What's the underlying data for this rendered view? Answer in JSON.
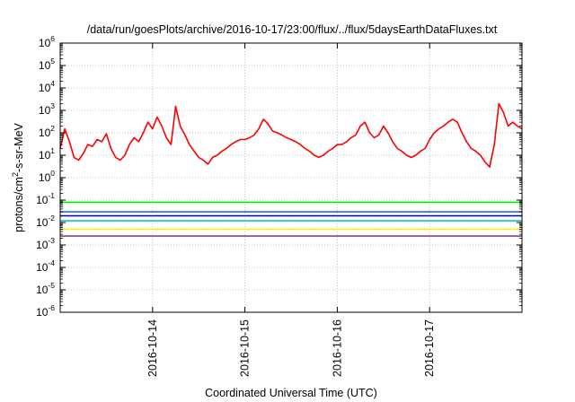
{
  "chart_data": {
    "type": "line",
    "title": "/data/run/goesPlots/archive/2016-10-17/23:00/flux/../flux/5daysEarthDataFluxes.txt",
    "xlabel": "Coordinated Universal Time (UTC)",
    "ylabel": {
      "pre": "protons/cm",
      "sup": "2",
      "post": "-s-sr-MeV"
    },
    "y_scale": "log",
    "ylim": [
      1e-06,
      1000000.0
    ],
    "y_ticks": [
      {
        "value": 1e-06,
        "base": "10",
        "exp": "-6"
      },
      {
        "value": 1e-05,
        "base": "10",
        "exp": "-5"
      },
      {
        "value": 0.0001,
        "base": "10",
        "exp": "-4"
      },
      {
        "value": 0.001,
        "base": "10",
        "exp": "-3"
      },
      {
        "value": 0.01,
        "base": "10",
        "exp": "-2"
      },
      {
        "value": 0.1,
        "base": "10",
        "exp": "-1"
      },
      {
        "value": 1,
        "base": "10",
        "exp": "0"
      },
      {
        "value": 10,
        "base": "10",
        "exp": "1"
      },
      {
        "value": 100,
        "base": "10",
        "exp": "2"
      },
      {
        "value": 1000,
        "base": "10",
        "exp": "3"
      },
      {
        "value": 10000,
        "base": "10",
        "exp": "4"
      },
      {
        "value": 100000,
        "base": "10",
        "exp": "5"
      },
      {
        "value": 1000000,
        "base": "10",
        "exp": "6"
      }
    ],
    "xlim": [
      "2016-10-13T00:00",
      "2016-10-18T00:00"
    ],
    "x_ticks": [
      {
        "value": "2016-10-14T00:00",
        "label": "2016-10-14"
      },
      {
        "value": "2016-10-15T00:00",
        "label": "2016-10-15"
      },
      {
        "value": "2016-10-16T00:00",
        "label": "2016-10-16"
      },
      {
        "value": "2016-10-17T00:00",
        "label": "2016-10-17"
      }
    ],
    "grid": true,
    "legend": "none",
    "series": [
      {
        "color": "#ff0000",
        "x": [
          "2016-10-13T00:00",
          "2016-10-13T01:12",
          "2016-10-13T02:24",
          "2016-10-13T03:36",
          "2016-10-13T04:48",
          "2016-10-13T06:00",
          "2016-10-13T07:12",
          "2016-10-13T08:24",
          "2016-10-13T09:36",
          "2016-10-13T10:48",
          "2016-10-13T12:00",
          "2016-10-13T13:12",
          "2016-10-13T14:24",
          "2016-10-13T15:36",
          "2016-10-13T16:48",
          "2016-10-13T18:00",
          "2016-10-13T19:12",
          "2016-10-13T20:24",
          "2016-10-13T21:36",
          "2016-10-13T22:48",
          "2016-10-14T00:00",
          "2016-10-14T01:12",
          "2016-10-14T02:24",
          "2016-10-14T03:36",
          "2016-10-14T04:48",
          "2016-10-14T06:00",
          "2016-10-14T07:12",
          "2016-10-14T08:24",
          "2016-10-14T09:36",
          "2016-10-14T10:48",
          "2016-10-14T12:00",
          "2016-10-14T13:12",
          "2016-10-14T14:24",
          "2016-10-14T15:36",
          "2016-10-14T16:48",
          "2016-10-14T18:00",
          "2016-10-14T19:12",
          "2016-10-14T20:24",
          "2016-10-14T21:36",
          "2016-10-14T22:48",
          "2016-10-15T00:00",
          "2016-10-15T01:12",
          "2016-10-15T02:24",
          "2016-10-15T03:36",
          "2016-10-15T04:48",
          "2016-10-15T06:00",
          "2016-10-15T07:12",
          "2016-10-15T08:24",
          "2016-10-15T09:36",
          "2016-10-15T10:48",
          "2016-10-15T12:00",
          "2016-10-15T13:12",
          "2016-10-15T14:24",
          "2016-10-15T15:36",
          "2016-10-15T16:48",
          "2016-10-15T18:00",
          "2016-10-15T19:12",
          "2016-10-15T20:24",
          "2016-10-15T21:36",
          "2016-10-15T22:48",
          "2016-10-16T00:00",
          "2016-10-16T01:12",
          "2016-10-16T02:24",
          "2016-10-16T03:36",
          "2016-10-16T04:48",
          "2016-10-16T06:00",
          "2016-10-16T07:12",
          "2016-10-16T08:24",
          "2016-10-16T09:36",
          "2016-10-16T10:48",
          "2016-10-16T12:00",
          "2016-10-16T13:12",
          "2016-10-16T14:24",
          "2016-10-16T15:36",
          "2016-10-16T16:48",
          "2016-10-16T18:00",
          "2016-10-16T19:12",
          "2016-10-16T20:24",
          "2016-10-16T21:36",
          "2016-10-16T22:48",
          "2016-10-17T00:00",
          "2016-10-17T01:12",
          "2016-10-17T02:24",
          "2016-10-17T03:36",
          "2016-10-17T04:48",
          "2016-10-17T06:00",
          "2016-10-17T07:12",
          "2016-10-17T08:24",
          "2016-10-17T09:36",
          "2016-10-17T10:48",
          "2016-10-17T12:00",
          "2016-10-17T13:12",
          "2016-10-17T14:24",
          "2016-10-17T15:36",
          "2016-10-17T16:48",
          "2016-10-17T18:00",
          "2016-10-17T19:12",
          "2016-10-17T20:24",
          "2016-10-17T21:36",
          "2016-10-17T22:48",
          "2016-10-18T00:00"
        ],
        "y": [
          20,
          150,
          40,
          8,
          6,
          12,
          30,
          25,
          50,
          40,
          90,
          20,
          8,
          6,
          10,
          30,
          60,
          40,
          100,
          300,
          150,
          500,
          200,
          60,
          30,
          1500,
          200,
          80,
          30,
          15,
          8,
          6,
          4,
          8,
          10,
          15,
          20,
          30,
          40,
          50,
          50,
          60,
          80,
          150,
          400,
          250,
          120,
          100,
          80,
          60,
          50,
          40,
          30,
          20,
          15,
          10,
          8,
          10,
          15,
          20,
          30,
          30,
          40,
          60,
          80,
          200,
          300,
          100,
          60,
          80,
          200,
          100,
          40,
          20,
          15,
          10,
          8,
          10,
          15,
          20,
          50,
          100,
          150,
          200,
          300,
          400,
          300,
          100,
          40,
          20,
          15,
          10,
          5,
          3,
          30,
          2000,
          800,
          200,
          300,
          200,
          150
        ]
      },
      {
        "color": "#00ee00",
        "x": [
          "2016-10-13T00:00",
          "2016-10-18T00:00"
        ],
        "y": [
          0.08,
          0.08
        ]
      },
      {
        "color": "#2266ff",
        "x": [
          "2016-10-13T00:00",
          "2016-10-18T00:00"
        ],
        "y": [
          0.03,
          0.03
        ]
      },
      {
        "color": "#0000cc",
        "x": [
          "2016-10-13T00:00",
          "2016-10-18T00:00"
        ],
        "y": [
          0.02,
          0.02
        ]
      },
      {
        "color": "#00bbbb",
        "x": [
          "2016-10-13T00:00",
          "2016-10-18T00:00"
        ],
        "y": [
          0.012,
          0.012
        ]
      },
      {
        "color": "#ffee00",
        "x": [
          "2016-10-13T00:00",
          "2016-10-18T00:00"
        ],
        "y": [
          0.005,
          0.005
        ]
      },
      {
        "color": "#884488",
        "x": [
          "2016-10-13T00:00",
          "2016-10-18T00:00"
        ],
        "y": [
          0.0025,
          0.0025
        ]
      }
    ]
  }
}
